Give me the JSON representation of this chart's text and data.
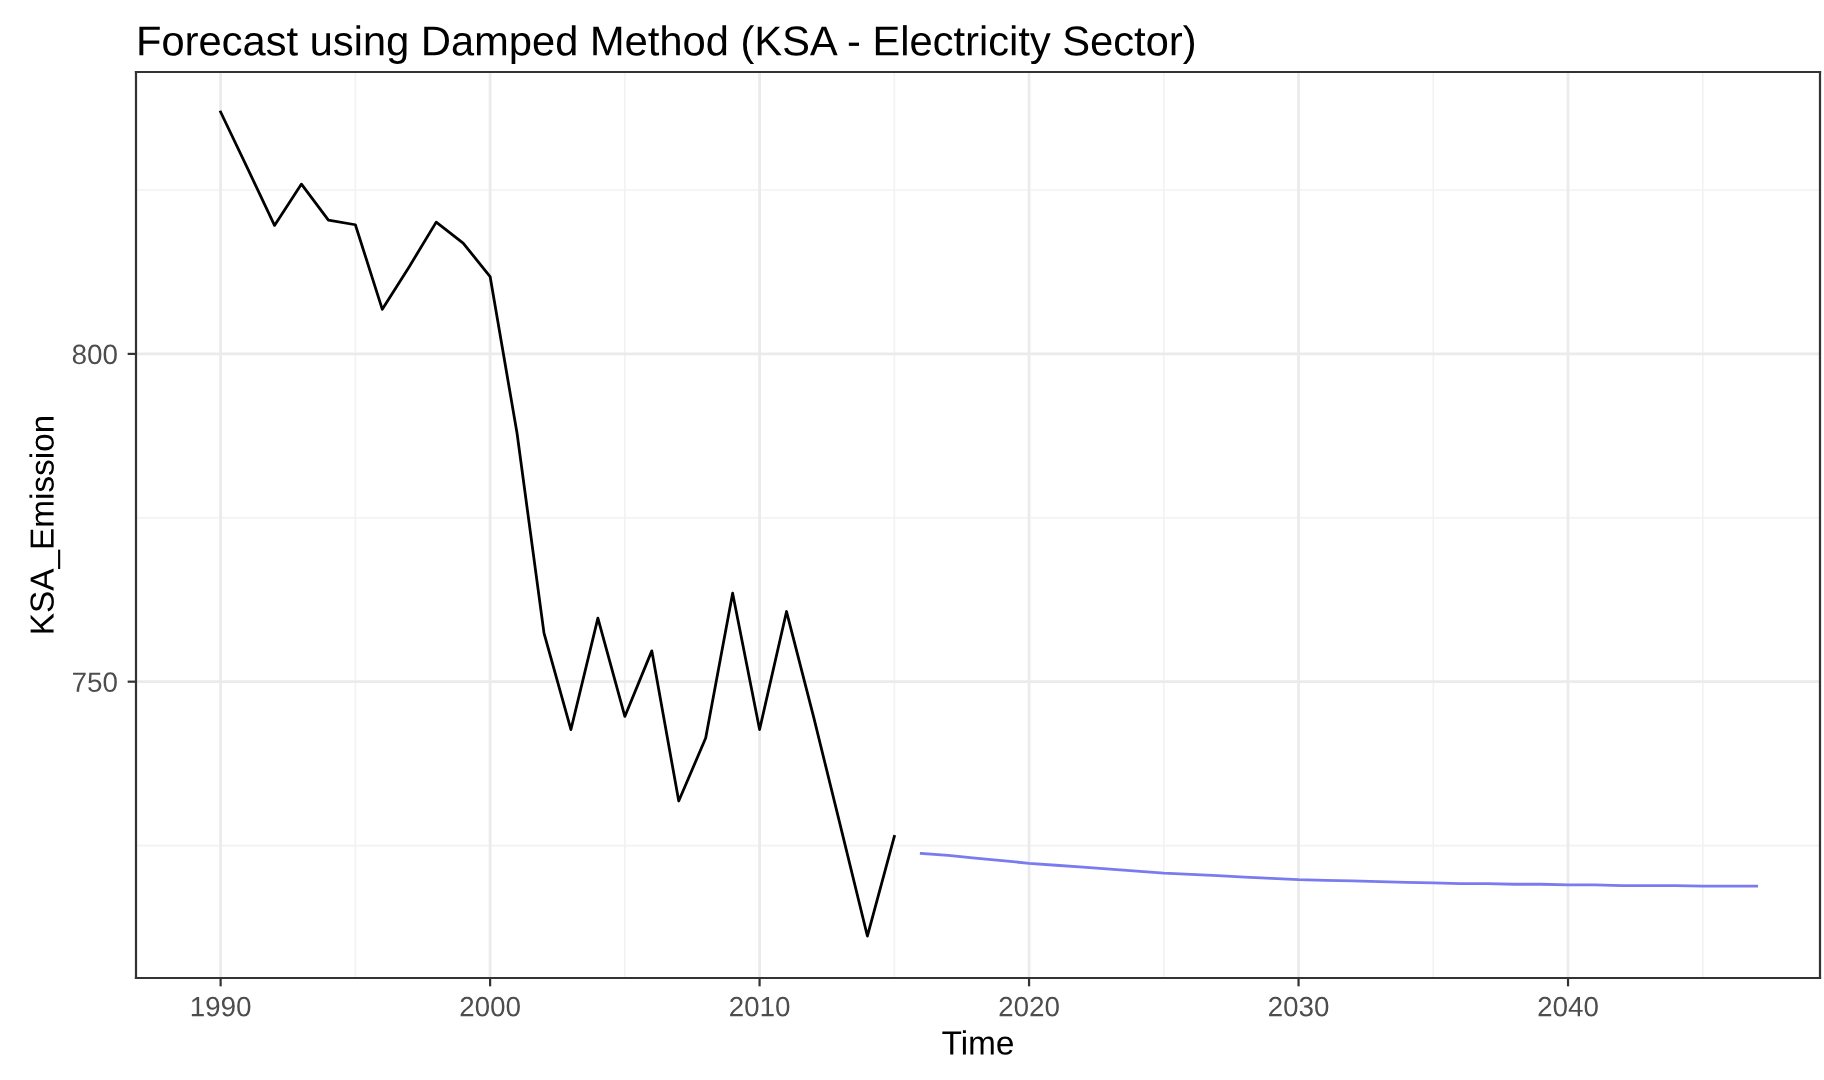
{
  "chart_data": {
    "type": "line",
    "title": "Forecast using Damped Method (KSA - Electricity Sector)",
    "xlabel": "Time",
    "ylabel": "KSA_Emission",
    "xlim": [
      1986.86,
      2049.35
    ],
    "xticks": [
      1990,
      2000,
      2010,
      2020,
      2030,
      2040
    ],
    "ylim": [
      704.8,
      843
    ],
    "yticks": [
      750,
      800
    ],
    "grid": true,
    "series": [
      {
        "color": "#000000",
        "x": [
          1990,
          1991,
          1992,
          1993,
          1994,
          1995,
          1996,
          1997,
          1998,
          1999,
          2000,
          2001,
          2002,
          2003,
          2004,
          2005,
          2006,
          2007,
          2008,
          2009,
          2010,
          2011,
          2012,
          2013,
          2014,
          2015
        ],
        "values": [
          836.9,
          828.3,
          819.6,
          825.9,
          820.4,
          819.7,
          806.8,
          813.3,
          820.1,
          816.9,
          811.8,
          787.9,
          757.4,
          742.7,
          759.7,
          744.7,
          754.7,
          731.8,
          741.4,
          763.5,
          742.7,
          760.7,
          744.7,
          728.0,
          711.2,
          726.4
        ]
      },
      {
        "color": "#7b7bf0",
        "x": [
          2016,
          2017,
          2018,
          2019,
          2020,
          2021,
          2022,
          2023,
          2024,
          2025,
          2026,
          2027,
          2028,
          2029,
          2030,
          2031,
          2032,
          2033,
          2034,
          2035,
          2036,
          2037,
          2038,
          2039,
          2040,
          2041,
          2042,
          2043,
          2044,
          2045,
          2046,
          2047
        ],
        "values": [
          723.8,
          723.5,
          723.1,
          722.7,
          722.3,
          722.0,
          721.7,
          721.4,
          721.1,
          720.8,
          720.6,
          720.4,
          720.2,
          720.0,
          719.8,
          719.7,
          719.6,
          719.5,
          719.4,
          719.3,
          719.2,
          719.2,
          719.1,
          719.1,
          719.0,
          719.0,
          718.9,
          718.9,
          718.9,
          718.8,
          718.8,
          718.8
        ]
      }
    ]
  }
}
